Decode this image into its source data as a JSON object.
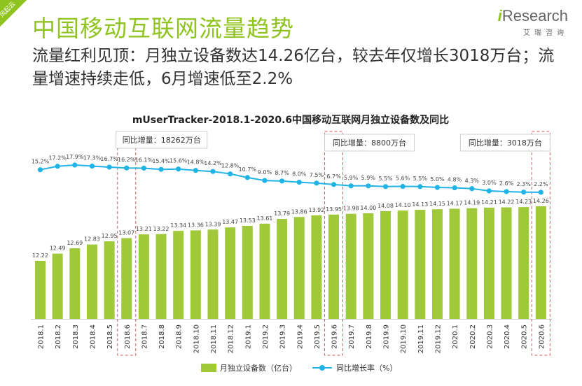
{
  "header": {
    "corner_label": "风起云",
    "title": "中国移动互联网流量趋势",
    "subtitle": "流量红利见顶：月独立设备数达14.26亿台，较去年仅增长3018万台；流量增速持续走低，6月增速低至2.2%",
    "logo_text": "Research",
    "logo_i": "i",
    "logo_sub": "艾瑞咨询"
  },
  "colors": {
    "accent": "#8fc31f",
    "bar": "#a0c93a",
    "line": "#20b4e6",
    "highlight_box": "#e05a5a"
  },
  "chart_data": {
    "type": "bar+line",
    "title": "mUserTracker-2018.1-2020.6中国移动互联网月独立设备数及同比",
    "categories": [
      "2018.1",
      "2018.2",
      "2018.3",
      "2018.4",
      "2018.5",
      "2018.6",
      "2018.7",
      "2018.8",
      "2018.9",
      "2018.10",
      "2018.11",
      "2018.12",
      "2019.1",
      "2019.2",
      "2019.3",
      "2019.4",
      "2019.5",
      "2019.6",
      "2019.7",
      "2019.8",
      "2019.9",
      "2019.10",
      "2019.11",
      "2019.12",
      "2020.1",
      "2020.2",
      "2020.3",
      "2020.4",
      "2020.5",
      "2020.6"
    ],
    "series": [
      {
        "name": "月独立设备数（亿台）",
        "kind": "bar",
        "values": [
          12.22,
          12.49,
          12.69,
          12.83,
          12.95,
          13.07,
          13.21,
          13.22,
          13.34,
          13.36,
          13.39,
          13.47,
          13.53,
          13.61,
          13.79,
          13.86,
          13.92,
          13.95,
          13.98,
          14.0,
          14.08,
          14.1,
          14.13,
          14.15,
          14.17,
          14.19,
          14.21,
          14.22,
          14.23,
          14.26
        ]
      },
      {
        "name": "同比增长率（%）",
        "kind": "line",
        "values": [
          15.2,
          17.2,
          17.9,
          17.3,
          16.7,
          16.2,
          16.1,
          15.4,
          15.6,
          14.8,
          14.2,
          12.8,
          10.7,
          9.0,
          8.7,
          8.0,
          7.5,
          6.7,
          5.9,
          5.9,
          5.5,
          5.6,
          5.5,
          5.0,
          4.8,
          4.3,
          3.0,
          2.6,
          2.3,
          2.2
        ]
      }
    ],
    "annotations": [
      {
        "category": "2018.6",
        "label": "同比增量：18262万台"
      },
      {
        "category": "2019.6",
        "label": "同比增量：8800万台"
      },
      {
        "category": "2020.6",
        "label": "同比增量：3018万台"
      }
    ],
    "legend": [
      "月独立设备数（亿台）",
      "同比增长率（%）"
    ],
    "legend_position": "bottom-center"
  }
}
